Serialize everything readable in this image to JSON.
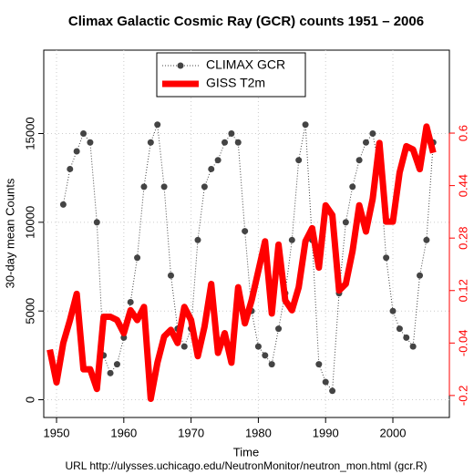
{
  "chart_data": {
    "type": "line",
    "title": "Climax Galactic Cosmic Ray (GCR) counts 1951 – 2006",
    "x_label": "Time",
    "y_label": "30-day mean Counts",
    "footnote": "URL http://ulysses.uchicago.edu/NeutronMonitor/neutron_mon.html (gcr.R)",
    "xlim": [
      1948.1,
      2008.4
    ],
    "xticks": [
      1950,
      1960,
      1970,
      1980,
      1990,
      2000
    ],
    "ylim": [
      -1000,
      19700
    ],
    "yticks": [
      0,
      5000,
      10000,
      15000
    ],
    "y2lim": [
      -0.267,
      0.853
    ],
    "y2ticks": [
      -0.2,
      -0.04,
      0.12,
      0.28,
      0.44,
      0.6
    ],
    "grid": true,
    "legend": "top",
    "series": [
      {
        "name": "CLIMAX GCR",
        "color": "#444444",
        "x": [
          1951,
          1952,
          1953,
          1954,
          1955,
          1956,
          1957,
          1958,
          1959,
          1960,
          1961,
          1962,
          1963,
          1964,
          1965,
          1966,
          1967,
          1968,
          1969,
          1970,
          1971,
          1972,
          1973,
          1974,
          1975,
          1976,
          1977,
          1978,
          1979,
          1980,
          1981,
          1982,
          1983,
          1984,
          1985,
          1986,
          1987,
          1988,
          1989,
          1990,
          1991,
          1992,
          1993,
          1994,
          1995,
          1996,
          1997,
          1998,
          1999,
          2000,
          2001,
          2002,
          2003,
          2004,
          2005,
          2006
        ],
        "values": [
          11000,
          13000,
          14000,
          15000,
          14500,
          10000,
          2500,
          1500,
          2000,
          3500,
          5500,
          8000,
          12000,
          14500,
          15500,
          12000,
          7000,
          4000,
          3000,
          4000,
          9000,
          12000,
          13000,
          13500,
          14500,
          15000,
          14500,
          9500,
          5000,
          3000,
          2500,
          2000,
          4000,
          6000,
          9000,
          13500,
          15500,
          9000,
          2000,
          1000,
          500,
          6000,
          10000,
          12000,
          13500,
          14500,
          15000,
          13000,
          8000,
          5000,
          4000,
          3500,
          3000,
          7000,
          9000,
          14500
        ]
      },
      {
        "name": "GISS T2m",
        "color": "#ff0000",
        "axis": "y2",
        "x": [
          1949,
          1950,
          1951,
          1952,
          1953,
          1954,
          1955,
          1956,
          1957,
          1958,
          1959,
          1960,
          1961,
          1962,
          1963,
          1964,
          1965,
          1966,
          1967,
          1968,
          1969,
          1970,
          1971,
          1972,
          1973,
          1974,
          1975,
          1976,
          1977,
          1978,
          1979,
          1980,
          1981,
          1982,
          1983,
          1984,
          1985,
          1986,
          1987,
          1988,
          1989,
          1990,
          1991,
          1992,
          1993,
          1994,
          1995,
          1996,
          1997,
          1998,
          1999,
          2000,
          2001,
          2002,
          2003,
          2004,
          2005,
          2006
        ],
        "values": [
          -0.06,
          -0.16,
          -0.04,
          0.03,
          0.11,
          -0.12,
          -0.12,
          -0.18,
          0.04,
          0.04,
          0.03,
          -0.01,
          0.06,
          0.03,
          0.07,
          -0.21,
          -0.1,
          -0.02,
          0.0,
          -0.04,
          0.07,
          0.03,
          -0.08,
          0.01,
          0.14,
          -0.07,
          -0.01,
          -0.1,
          0.13,
          0.02,
          0.09,
          0.18,
          0.27,
          0.05,
          0.26,
          0.09,
          0.06,
          0.13,
          0.27,
          0.31,
          0.19,
          0.38,
          0.35,
          0.12,
          0.14,
          0.24,
          0.38,
          0.3,
          0.4,
          0.57,
          0.33,
          0.33,
          0.48,
          0.56,
          0.55,
          0.49,
          0.62,
          0.54
        ]
      }
    ]
  }
}
